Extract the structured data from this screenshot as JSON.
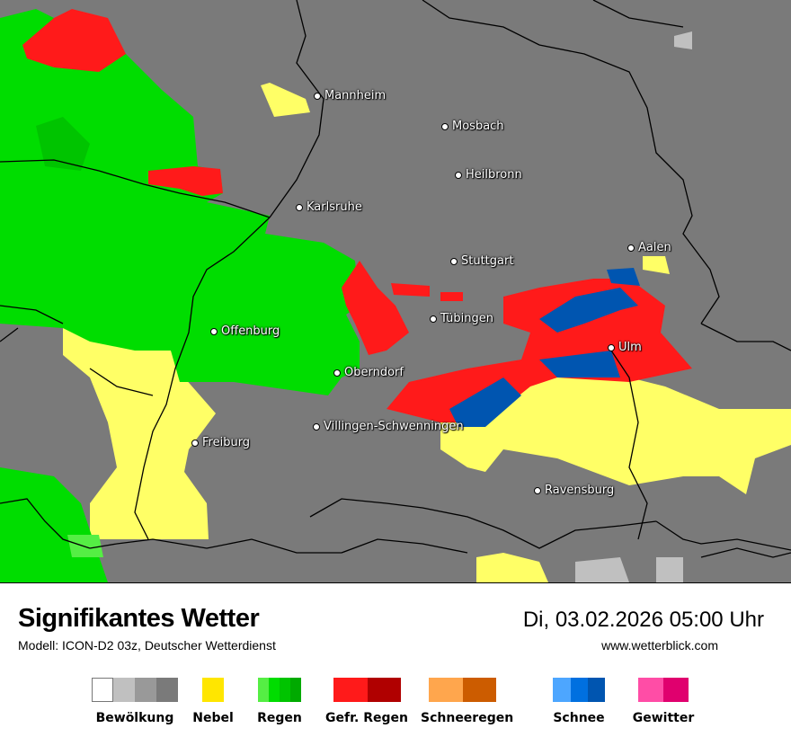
{
  "header": {
    "title": "Signifikantes Wetter",
    "model": "Modell: ICON-D2 03z, Deutscher Wetterdienst",
    "datetime": "Di, 03.02.2026 05:00 Uhr",
    "website": "www.wetterblick.com"
  },
  "map": {
    "background_color": "#7a7a7a",
    "cities": [
      {
        "name": "Mannheim"
      },
      {
        "name": "Mosbach"
      },
      {
        "name": "Heilbronn"
      },
      {
        "name": "Karlsruhe"
      },
      {
        "name": "Aalen"
      },
      {
        "name": "Stuttgart"
      },
      {
        "name": "Tübingen"
      },
      {
        "name": "Offenburg"
      },
      {
        "name": "Ulm"
      },
      {
        "name": "Oberndorf"
      },
      {
        "name": "Villingen-Schwenningen"
      },
      {
        "name": "Freiburg"
      },
      {
        "name": "Ravensburg"
      }
    ]
  },
  "legend": [
    {
      "label": "Bewölkung",
      "colors": [
        "#ffffff",
        "#c0c0c0",
        "#999999",
        "#7a7a7a"
      ]
    },
    {
      "label": "Nebel",
      "colors": [
        "#ffe600"
      ]
    },
    {
      "label": "Regen",
      "colors": [
        "#55ee44",
        "#00dd00",
        "#00c400",
        "#00aa00"
      ]
    },
    {
      "label": "Gefr. Regen",
      "colors": [
        "#ff1a1a",
        "#b00000"
      ]
    },
    {
      "label": "Schneeregen",
      "colors": [
        "#ffa64d",
        "#cc5c00"
      ]
    },
    {
      "label": "Schnee",
      "colors": [
        "#4da6ff",
        "#0070e0",
        "#0055b0"
      ]
    },
    {
      "label": "Gewitter",
      "colors": [
        "#ff4da6",
        "#e0006e"
      ]
    }
  ]
}
